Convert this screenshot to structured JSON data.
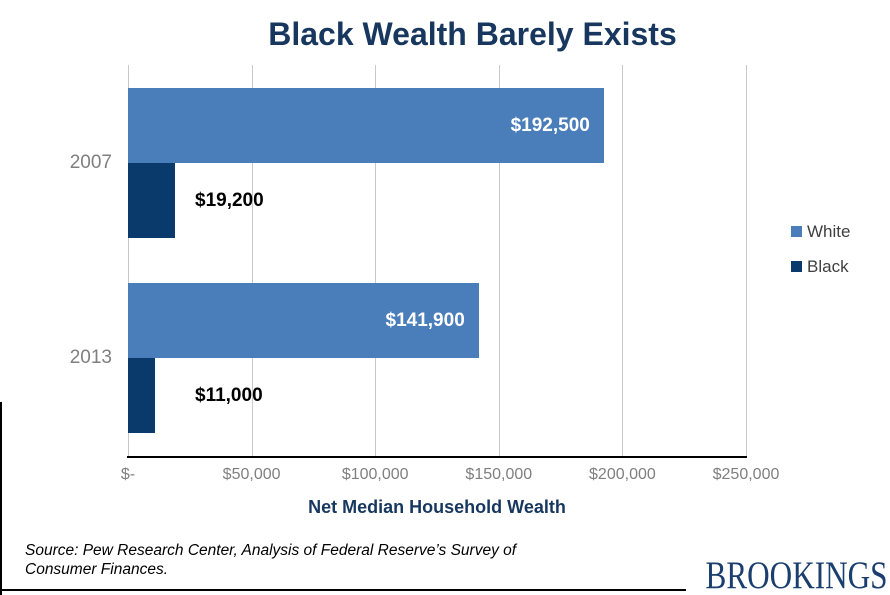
{
  "title": "Black Wealth Barely Exists",
  "chart_data": {
    "type": "bar",
    "orientation": "horizontal",
    "title": "Black Wealth Barely Exists",
    "categories": [
      "2007",
      "2013"
    ],
    "series": [
      {
        "name": "White",
        "color": "#4A7EBB",
        "values": [
          192500,
          141900
        ],
        "labels": [
          "$192,500",
          "$141,900"
        ],
        "label_inside": true
      },
      {
        "name": "Black",
        "color": "#0A3A6B",
        "values": [
          19200,
          11000
        ],
        "labels": [
          "$19,200",
          "$11,000"
        ],
        "label_inside": false
      }
    ],
    "xlabel": "Net Median Household Wealth",
    "ylabel": "",
    "xlim": [
      0,
      250000
    ],
    "x_ticks": [
      "$-",
      "$50,000",
      "$100,000",
      "$150,000",
      "$200,000",
      "$250,000"
    ],
    "grid": "vertical",
    "legend_position": "right"
  },
  "colors": {
    "title_navy": "#17375E",
    "white_series": "#4A7EBB",
    "black_series": "#0A3A6B",
    "tick_gray": "#7F7F7F",
    "gridline": "#C9C9C9",
    "logo_navy": "#1A3E6E"
  },
  "footer": {
    "source_line1": "Source: Pew Research Center, Analysis of Federal Reserve’s Survey of",
    "source_line2": "Consumer Finances.",
    "logo_text": "BROOKINGS"
  }
}
